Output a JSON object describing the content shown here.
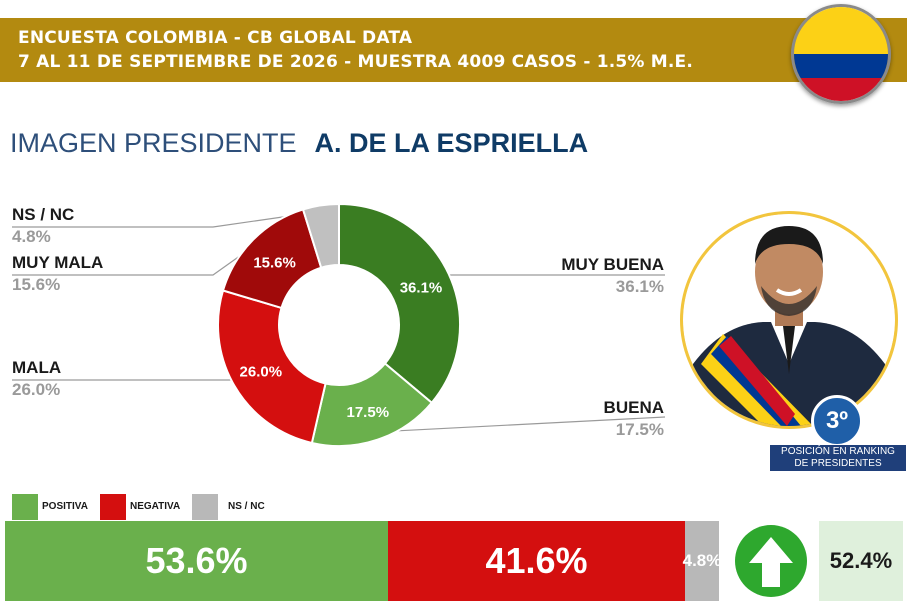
{
  "header": {
    "line1": "ENCUESTA COLOMBIA - CB GLOBAL DATA",
    "line2": "7 AL 11 DE SEPTIEMBRE DE 2026 - MUESTRA 4009 CASOS - 1.5% M.E.",
    "flag_colors": [
      "#fcd116",
      "#003893",
      "#ce1126"
    ]
  },
  "title": {
    "prefix": "IMAGEN PRESIDENTE",
    "name": "A. DE LA ESPRIELLA"
  },
  "chart_data": {
    "type": "pie",
    "donut": true,
    "slices": [
      {
        "name": "MUY BUENA",
        "value": 36.1,
        "label": "36.1%",
        "color": "#3a7d22"
      },
      {
        "name": "BUENA",
        "value": 17.5,
        "label": "17.5%",
        "color": "#6ab04c"
      },
      {
        "name": "MALA",
        "value": 26.0,
        "label": "26.0%",
        "color": "#d40f0f"
      },
      {
        "name": "MUY MALA",
        "value": 15.6,
        "label": "15.6%",
        "color": "#a00a0a"
      },
      {
        "name": "NS / NC",
        "value": 4.8,
        "label": "4.8%",
        "color": "#c0c0c0"
      }
    ]
  },
  "ranking": {
    "position": "3º",
    "caption_line1": "POSICIÓN EN RANKING",
    "caption_line2": "DE PRESIDENTES"
  },
  "summary": {
    "legend": [
      {
        "label": "POSITIVA",
        "color": "#6ab04c"
      },
      {
        "label": "NEGATIVA",
        "color": "#d40f0f"
      },
      {
        "label": "NS / NC",
        "color": "#b8b8b8"
      }
    ],
    "bars": [
      {
        "label": "53.6%",
        "value": 53.6,
        "color": "#6ab04c"
      },
      {
        "label": "41.6%",
        "value": 41.6,
        "color": "#d40f0f"
      },
      {
        "label": "4.8%",
        "value": 4.8,
        "color": "#b8b8b8"
      }
    ],
    "net_direction": "up-arrow-icon",
    "net_value": "52.4%"
  }
}
